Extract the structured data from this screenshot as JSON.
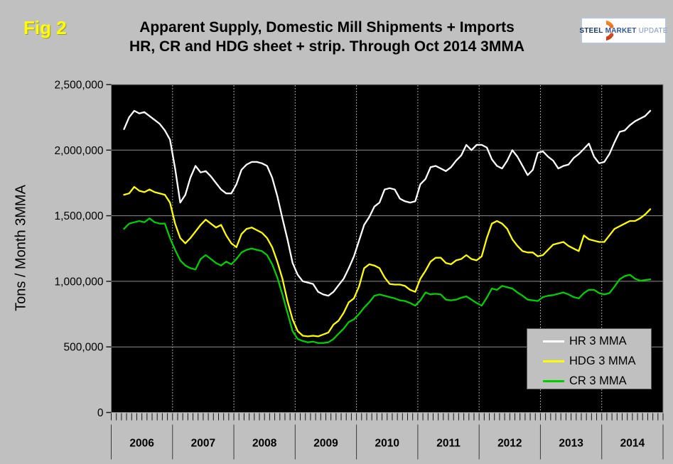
{
  "figure_label": "Fig 2",
  "title": {
    "line1": "Apparent Supply, Domestic Mill Shipments + Imports",
    "line2": "HR, CR and HDG sheet + strip. Through Oct 2014 3MMA"
  },
  "logo": {
    "steel": "STEEL",
    "market": "MARKET",
    "update": "UPDATE",
    "arc_color_top": "#f0862c",
    "arc_color_bottom": "#cc3a1e"
  },
  "y_axis_title": "Tons / Month 3MMA",
  "colors": {
    "page_bg": "#c0c0c0",
    "plot_bg": "#000000",
    "h_gridline": "#8e8e8e",
    "v_gridline": "#cfcfcf",
    "tick": "#1a1a1a",
    "year_separator": "#3a3a3a",
    "plot_border": "#888888"
  },
  "chart_data": {
    "type": "line",
    "title": "Apparent Supply, Domestic Mill Shipments + Imports — HR, CR and HDG sheet + strip. Through Oct 2014 3MMA",
    "xlabel": "",
    "ylabel": "Tons / Month 3MMA",
    "ylim": [
      0,
      2500000
    ],
    "frequency": "monthly",
    "x_start": "2006-03",
    "x_end": "2014-10",
    "months_span": 108,
    "start_month_index": 2,
    "categories": [
      "2006",
      "2007",
      "2008",
      "2009",
      "2010",
      "2011",
      "2012",
      "2013",
      "2014"
    ],
    "y_ticks": [
      {
        "value": 0,
        "label": "0"
      },
      {
        "value": 500000,
        "label": "500,000"
      },
      {
        "value": 1000000,
        "label": "1,000,000"
      },
      {
        "value": 1500000,
        "label": "1,500,000"
      },
      {
        "value": 2000000,
        "label": "2,000,000"
      },
      {
        "value": 2500000,
        "label": "2,500,000"
      }
    ],
    "legend_position": "bottom-right",
    "grid": {
      "horizontal": "solid",
      "vertical": "dashed-yearly"
    },
    "series": [
      {
        "name": "CR 3 MMA",
        "color": "#00cc00",
        "values": [
          1400000,
          1440000,
          1450000,
          1460000,
          1450000,
          1480000,
          1450000,
          1440000,
          1440000,
          1330000,
          1240000,
          1160000,
          1120000,
          1100000,
          1090000,
          1170000,
          1200000,
          1170000,
          1140000,
          1120000,
          1150000,
          1130000,
          1170000,
          1220000,
          1240000,
          1250000,
          1240000,
          1230000,
          1200000,
          1130000,
          1030000,
          900000,
          760000,
          620000,
          560000,
          545000,
          535000,
          540000,
          530000,
          530000,
          535000,
          560000,
          600000,
          640000,
          690000,
          710000,
          750000,
          800000,
          840000,
          890000,
          900000,
          890000,
          880000,
          870000,
          855000,
          850000,
          835000,
          815000,
          855000,
          915000,
          900000,
          905000,
          900000,
          860000,
          855000,
          860000,
          875000,
          885000,
          860000,
          835000,
          815000,
          875000,
          945000,
          935000,
          965000,
          955000,
          945000,
          915000,
          890000,
          860000,
          855000,
          850000,
          880000,
          890000,
          895000,
          905000,
          915000,
          900000,
          880000,
          870000,
          910000,
          935000,
          935000,
          910000,
          900000,
          910000,
          960000,
          1015000,
          1040000,
          1050000,
          1020000,
          1005000,
          1010000,
          1015000
        ]
      },
      {
        "name": "HDG 3 MMA",
        "color": "#ffff00",
        "values": [
          1660000,
          1670000,
          1720000,
          1690000,
          1680000,
          1700000,
          1680000,
          1670000,
          1660000,
          1600000,
          1440000,
          1330000,
          1290000,
          1330000,
          1380000,
          1430000,
          1470000,
          1440000,
          1410000,
          1430000,
          1350000,
          1290000,
          1260000,
          1360000,
          1400000,
          1410000,
          1390000,
          1370000,
          1330000,
          1260000,
          1150000,
          1020000,
          850000,
          710000,
          620000,
          585000,
          580000,
          585000,
          580000,
          595000,
          610000,
          670000,
          700000,
          760000,
          840000,
          870000,
          960000,
          1100000,
          1130000,
          1120000,
          1100000,
          1030000,
          980000,
          975000,
          975000,
          965000,
          935000,
          920000,
          1020000,
          1080000,
          1150000,
          1180000,
          1180000,
          1140000,
          1130000,
          1160000,
          1170000,
          1200000,
          1170000,
          1160000,
          1190000,
          1330000,
          1440000,
          1460000,
          1440000,
          1400000,
          1320000,
          1270000,
          1230000,
          1220000,
          1220000,
          1190000,
          1200000,
          1240000,
          1280000,
          1290000,
          1300000,
          1270000,
          1250000,
          1230000,
          1350000,
          1320000,
          1310000,
          1300000,
          1300000,
          1350000,
          1400000,
          1420000,
          1440000,
          1460000,
          1460000,
          1480000,
          1510000,
          1550000
        ]
      },
      {
        "name": "HR 3 MMA",
        "color": "#ffffff",
        "values": [
          2160000,
          2250000,
          2300000,
          2280000,
          2290000,
          2260000,
          2230000,
          2200000,
          2150000,
          2080000,
          1860000,
          1600000,
          1660000,
          1790000,
          1880000,
          1830000,
          1840000,
          1800000,
          1750000,
          1700000,
          1670000,
          1670000,
          1740000,
          1850000,
          1890000,
          1910000,
          1910000,
          1900000,
          1880000,
          1790000,
          1650000,
          1480000,
          1320000,
          1140000,
          1050000,
          1000000,
          990000,
          980000,
          920000,
          900000,
          890000,
          920000,
          970000,
          1020000,
          1100000,
          1190000,
          1310000,
          1430000,
          1490000,
          1570000,
          1600000,
          1700000,
          1710000,
          1700000,
          1630000,
          1610000,
          1600000,
          1610000,
          1740000,
          1780000,
          1870000,
          1880000,
          1860000,
          1840000,
          1870000,
          1920000,
          1960000,
          2040000,
          2000000,
          2040000,
          2040000,
          2020000,
          1930000,
          1880000,
          1860000,
          1920000,
          2000000,
          1950000,
          1880000,
          1810000,
          1850000,
          1980000,
          1990000,
          1950000,
          1920000,
          1860000,
          1880000,
          1890000,
          1940000,
          1970000,
          2010000,
          2050000,
          1950000,
          1900000,
          1910000,
          1970000,
          2060000,
          2140000,
          2150000,
          2190000,
          2220000,
          2240000,
          2260000,
          2300000
        ]
      }
    ]
  }
}
